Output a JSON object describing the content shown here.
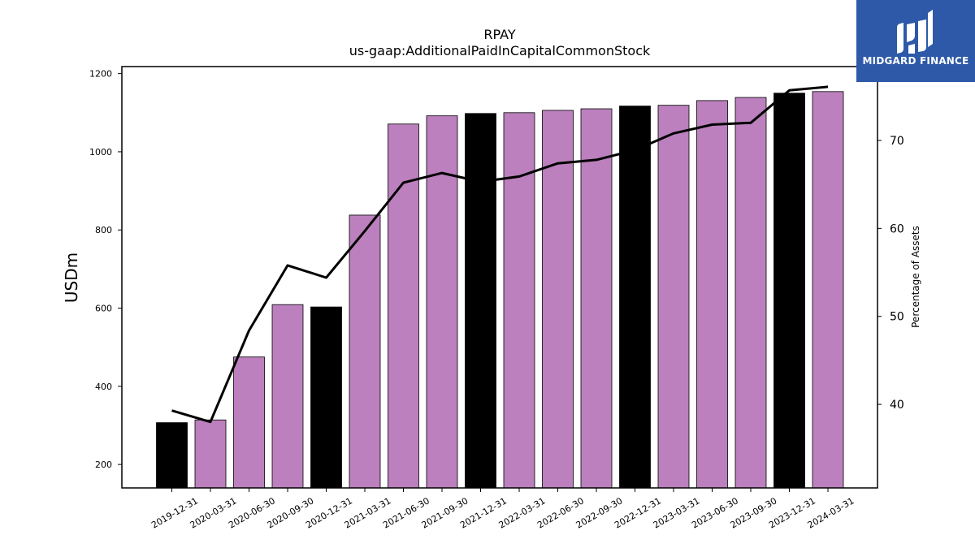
{
  "chart_data": {
    "type": "bar",
    "title": "RPAY",
    "subtitle": "us-gaap:AdditionalPaidInCapitalCommonStock",
    "ylabel": "USDm",
    "y2label": "Percentage of Assets",
    "ylim": [
      140,
      1218
    ],
    "y2lim": [
      30.5,
      78.4
    ],
    "yticks": [
      200,
      400,
      600,
      800,
      1000,
      1200
    ],
    "y2ticks": [
      40,
      50,
      60,
      70
    ],
    "categories": [
      "2019-12-31",
      "2020-03-31",
      "2020-06-30",
      "2020-09-30",
      "2020-12-31",
      "2021-03-31",
      "2021-06-30",
      "2021-09-30",
      "2021-12-31",
      "2022-03-31",
      "2022-06-30",
      "2022-09-30",
      "2022-12-31",
      "2023-03-31",
      "2023-06-30",
      "2023-09-30",
      "2023-12-31",
      "2024-03-31"
    ],
    "series": [
      {
        "kind": "bar",
        "values": [
          307,
          314,
          475,
          609,
          603,
          838,
          1071,
          1092,
          1098,
          1100,
          1106,
          1110,
          1117,
          1119,
          1131,
          1139,
          1150,
          1154
        ]
      },
      {
        "kind": "line",
        "axis": "right",
        "values": [
          39.3,
          38.0,
          48.4,
          55.8,
          54.4,
          59.7,
          65.2,
          66.3,
          65.3,
          65.9,
          67.4,
          67.8,
          68.9,
          70.8,
          71.8,
          72.0,
          75.7,
          76.1
        ]
      }
    ],
    "bar_colors": {
      "quarter": "#bb80bd",
      "year_end": "#000000",
      "edge": "#000000",
      "line": "#000000"
    }
  },
  "logo": {
    "text": "MIDGARD FINANCE",
    "background": "#2d59a8"
  }
}
